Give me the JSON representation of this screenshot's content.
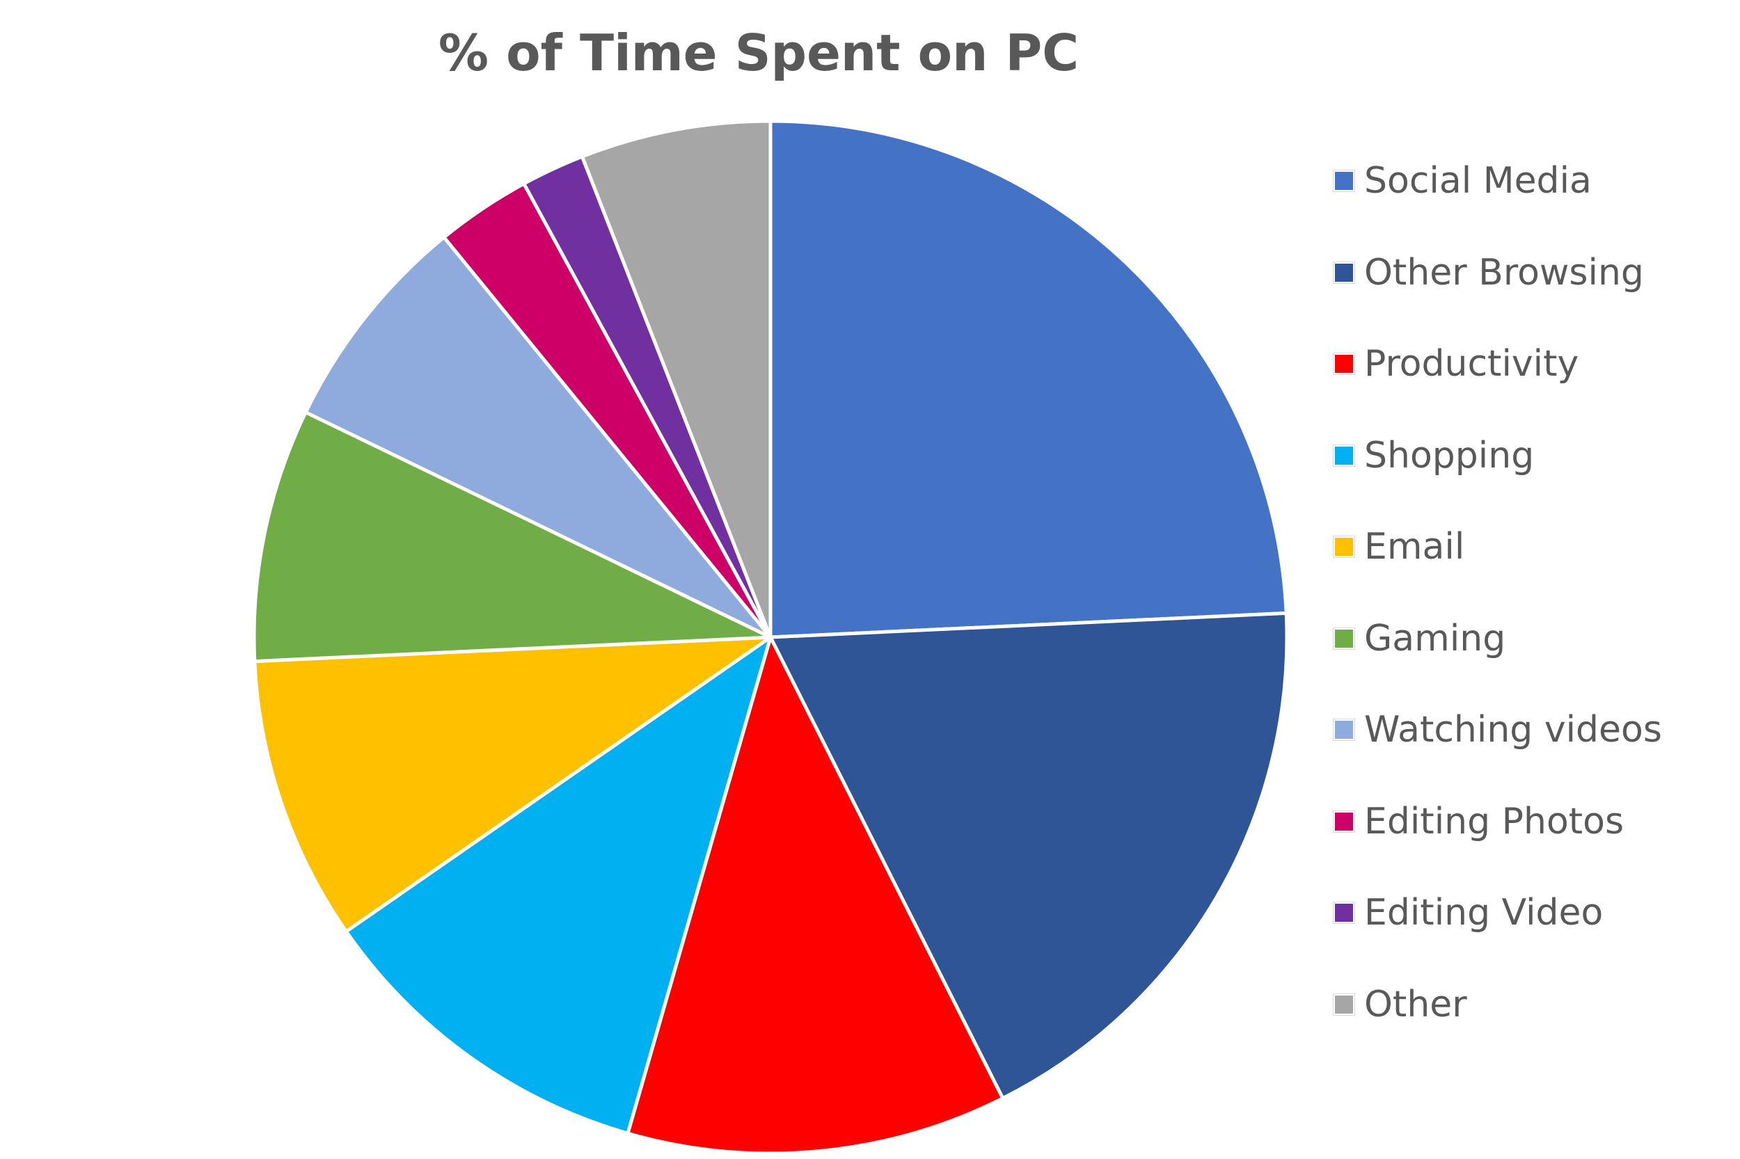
{
  "chart_data": {
    "type": "pie",
    "title": "% of Time Spent on PC",
    "legend_position": "right",
    "slices": [
      {
        "label": "Social Media",
        "value": 24.5,
        "color": "#4472C4"
      },
      {
        "label": "Other Browsing",
        "value": 18.5,
        "color": "#2F5597"
      },
      {
        "label": "Productivity",
        "value": 12.0,
        "color": "#FF0000"
      },
      {
        "label": "Shopping",
        "value": 11.0,
        "color": "#00B0F0"
      },
      {
        "label": "Email",
        "value": 9.0,
        "color": "#FFC000"
      },
      {
        "label": "Gaming",
        "value": 8.0,
        "color": "#70AD47"
      },
      {
        "label": "Watching videos",
        "value": 7.0,
        "color": "#8FAADC"
      },
      {
        "label": "Editing Photos",
        "value": 3.0,
        "color": "#CC0066"
      },
      {
        "label": "Editing Video",
        "value": 2.0,
        "color": "#7030A0"
      },
      {
        "label": "Other",
        "value": 6.0,
        "color": "#A6A6A6"
      }
    ]
  }
}
